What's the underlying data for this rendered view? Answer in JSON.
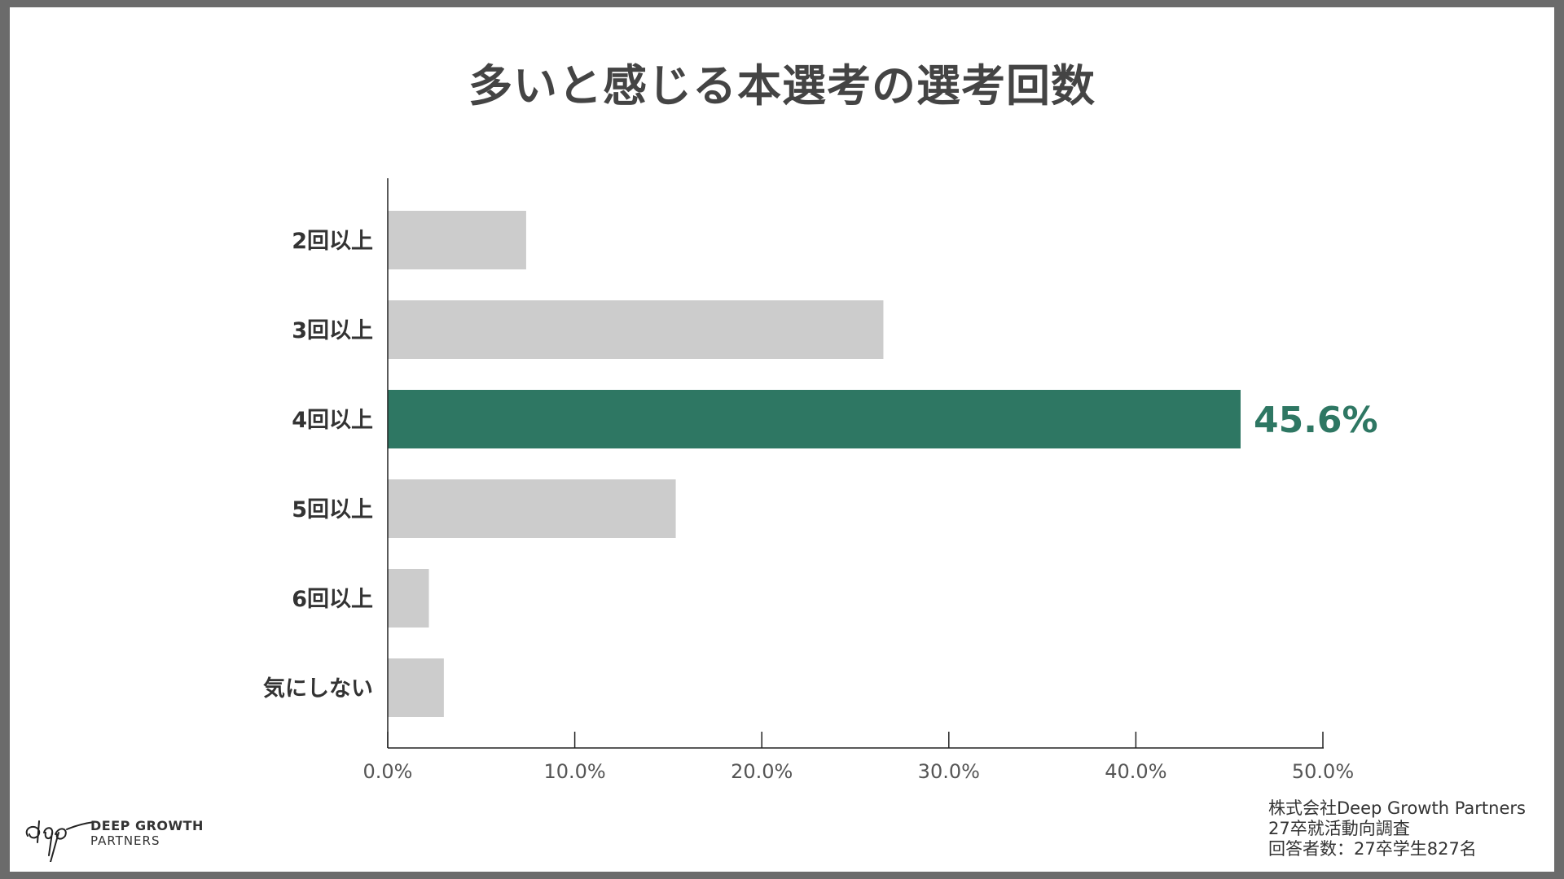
{
  "title": "多いと感じる本選考の選考回数",
  "chart_data": {
    "type": "bar",
    "orientation": "horizontal",
    "categories": [
      "2回以上",
      "3回以上",
      "4回以上",
      "5回以上",
      "6回以上",
      "気にしない"
    ],
    "values": [
      7.4,
      26.5,
      45.6,
      15.4,
      2.2,
      3.0
    ],
    "value_unit": "%",
    "highlight_index": 2,
    "data_labels": {
      "2": "45.6%"
    },
    "xlim": [
      0,
      50
    ],
    "xticks": [
      "0.0%",
      "10.0%",
      "20.0%",
      "30.0%",
      "40.0%",
      "50.0%"
    ],
    "xtick_values": [
      0,
      10,
      20,
      30,
      40,
      50
    ],
    "grid": false,
    "colors": {
      "default": "#cccccc",
      "highlight": "#2e7763"
    }
  },
  "logo": {
    "line1": "DEEP GROWTH",
    "line2": "PARTNERS"
  },
  "source": {
    "line1": "株式会社Deep Growth Partners",
    "line2": "27卒就活動向調査",
    "line3": "回答者数：27卒学生827名"
  }
}
